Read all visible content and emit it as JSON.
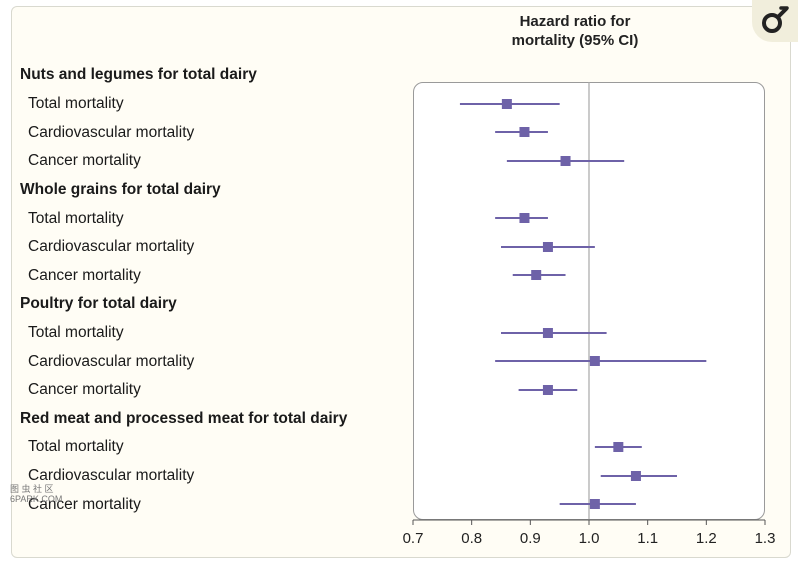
{
  "header": {
    "line1": "Hazard ratio for",
    "line2": "mortality (95% CI)"
  },
  "watermark": {
    "line1": "图 虫 社 区",
    "line2": "6PARK.COM"
  },
  "colors": {
    "marker": "#6e62a8",
    "refline": "#a8a8a8",
    "axis": "#555555"
  },
  "groups": [
    {
      "label": "Nuts and legumes for total dairy"
    },
    {
      "label": "Whole grains for total dairy"
    },
    {
      "label": "Poultry for total dairy"
    },
    {
      "label": "Red meat and processed meat for total dairy"
    }
  ],
  "chart_data": {
    "type": "forest",
    "xlim": [
      0.7,
      1.3
    ],
    "x_ticks": [
      "0.7",
      "0.8",
      "0.9",
      "1.0",
      "1.1",
      "1.2",
      "1.3"
    ],
    "reference_line": 1.0,
    "rows": [
      {
        "group": "Nuts and legumes for total dairy",
        "label": "Total mortality",
        "hr": 0.86,
        "lo": 0.78,
        "hi": 0.95
      },
      {
        "group": "Nuts and legumes for total dairy",
        "label": "Cardiovascular mortality",
        "hr": 0.89,
        "lo": 0.84,
        "hi": 0.93
      },
      {
        "group": "Nuts and legumes for total dairy",
        "label": "Cancer mortality",
        "hr": 0.96,
        "lo": 0.86,
        "hi": 1.06
      },
      {
        "group": "Whole grains for total dairy",
        "label": "Total mortality",
        "hr": 0.89,
        "lo": 0.84,
        "hi": 0.93
      },
      {
        "group": "Whole grains for total dairy",
        "label": "Cardiovascular mortality",
        "hr": 0.93,
        "lo": 0.85,
        "hi": 1.01
      },
      {
        "group": "Whole grains for total dairy",
        "label": "Cancer mortality",
        "hr": 0.91,
        "lo": 0.87,
        "hi": 0.96
      },
      {
        "group": "Poultry for total dairy",
        "label": "Total mortality",
        "hr": 0.93,
        "lo": 0.85,
        "hi": 1.03
      },
      {
        "group": "Poultry for total dairy",
        "label": "Cardiovascular mortality",
        "hr": 1.01,
        "lo": 0.84,
        "hi": 1.2
      },
      {
        "group": "Poultry for total dairy",
        "label": "Cancer mortality",
        "hr": 0.93,
        "lo": 0.88,
        "hi": 0.98
      },
      {
        "group": "Red meat and processed meat for total dairy",
        "label": "Total mortality",
        "hr": 1.05,
        "lo": 1.01,
        "hi": 1.09
      },
      {
        "group": "Red meat and processed meat for total dairy",
        "label": "Cardiovascular mortality",
        "hr": 1.08,
        "lo": 1.02,
        "hi": 1.15
      },
      {
        "group": "Red meat and processed meat for total dairy",
        "label": "Cancer mortality",
        "hr": 1.01,
        "lo": 0.95,
        "hi": 1.08
      }
    ]
  }
}
